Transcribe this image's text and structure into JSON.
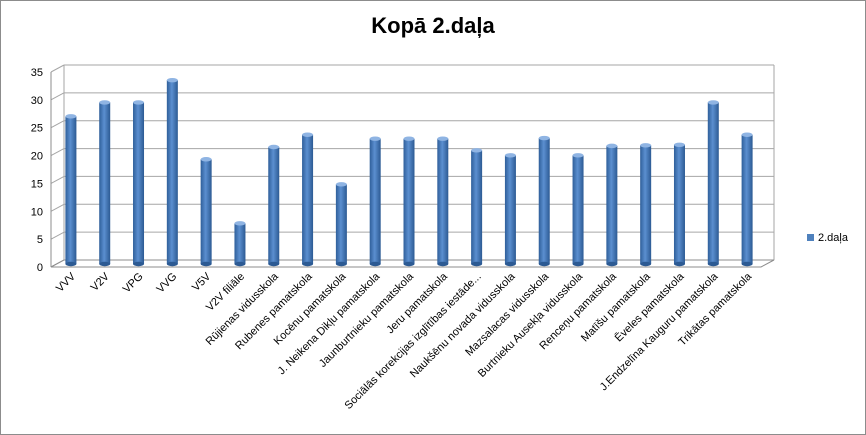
{
  "chart_data": {
    "type": "bar",
    "title": "Kopā 2.daļa",
    "xlabel": "",
    "ylabel": "",
    "ylim": [
      0,
      35
    ],
    "yticks": [
      0,
      5,
      10,
      15,
      20,
      25,
      30,
      35
    ],
    "grid": true,
    "legend_position": "right",
    "bar_color": "#4f81bd",
    "categories": [
      "VVV",
      "V2V",
      "VPG",
      "VVG",
      "V5V",
      "V2V filiāle",
      "Rūjienas vidusskola",
      "Rubenes pamatskola",
      "Kocēnu pamatskola",
      "J. Neikena  Dikļu pamatskola",
      "Jaunburtnieku pamatskola",
      "Jeru pamatskola",
      "Sociālās korekcijas izglītības iestāde...",
      "Naukšēnu novada vidusskola",
      "Mazsalacas vidusskola",
      "Burtnieku Ausekļa vidusskola",
      "Renceņu pamatskola",
      "Matīšu pamatskola",
      "Ēveles pamatskola",
      "J.Endzelīna Kauguru pamatskola",
      "Trikātas pamatskola"
    ],
    "series": [
      {
        "name": "2.daļa",
        "values": [
          26.5,
          29,
          29,
          33,
          18.8,
          7.3,
          21,
          23.2,
          14.3,
          22.5,
          22.5,
          22.5,
          20.4,
          19.5,
          22.6,
          19.5,
          21.2,
          21.3,
          21.4,
          29,
          23.2
        ]
      }
    ]
  }
}
